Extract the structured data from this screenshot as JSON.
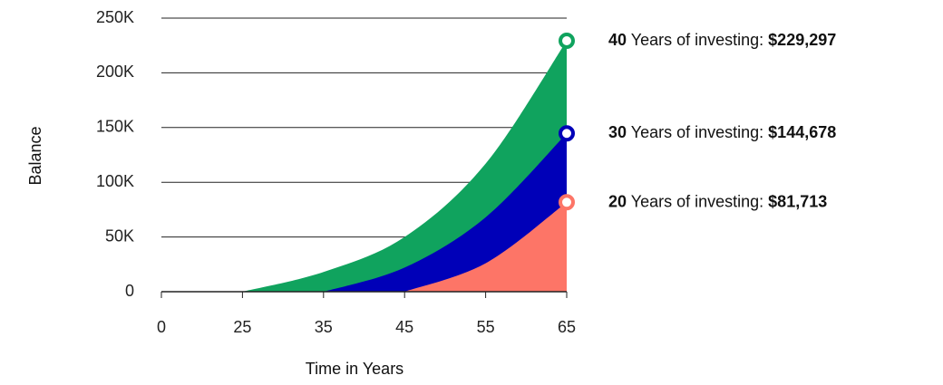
{
  "chart_data": {
    "type": "area",
    "x_label": "Time in Years",
    "y_label": "Balance",
    "categories": [
      "0",
      "25",
      "35",
      "45",
      "55",
      "65"
    ],
    "ylim": [
      0,
      250000
    ],
    "yticks": [
      0,
      {
        "value": 50000,
        "label": "50K"
      },
      {
        "value": 100000,
        "label": "100K"
      },
      {
        "value": 150000,
        "label": "150K"
      },
      {
        "value": 200000,
        "label": "200K"
      },
      {
        "value": 250000,
        "label": "250K"
      }
    ],
    "grid": true,
    "series": [
      {
        "name": "40",
        "text": "Years of investing:",
        "color": "#10a35e",
        "values": [
          null,
          0,
          18000,
          50000,
          117000,
          229297
        ],
        "value_labels": [
          null,
          null,
          null,
          null,
          null,
          "$229,297"
        ]
      },
      {
        "name": "30",
        "text": "Years of investing:",
        "color": "#0000b8",
        "values": [
          null,
          null,
          0,
          22000,
          68000,
          144678
        ],
        "value_labels": [
          null,
          null,
          null,
          null,
          null,
          "$144,678"
        ]
      },
      {
        "name": "20",
        "text": "Years of investing:",
        "color": "#fd7567",
        "values": [
          null,
          null,
          null,
          0,
          26000,
          81713
        ],
        "value_labels": [
          null,
          null,
          null,
          null,
          null,
          "$81,713"
        ]
      }
    ]
  }
}
